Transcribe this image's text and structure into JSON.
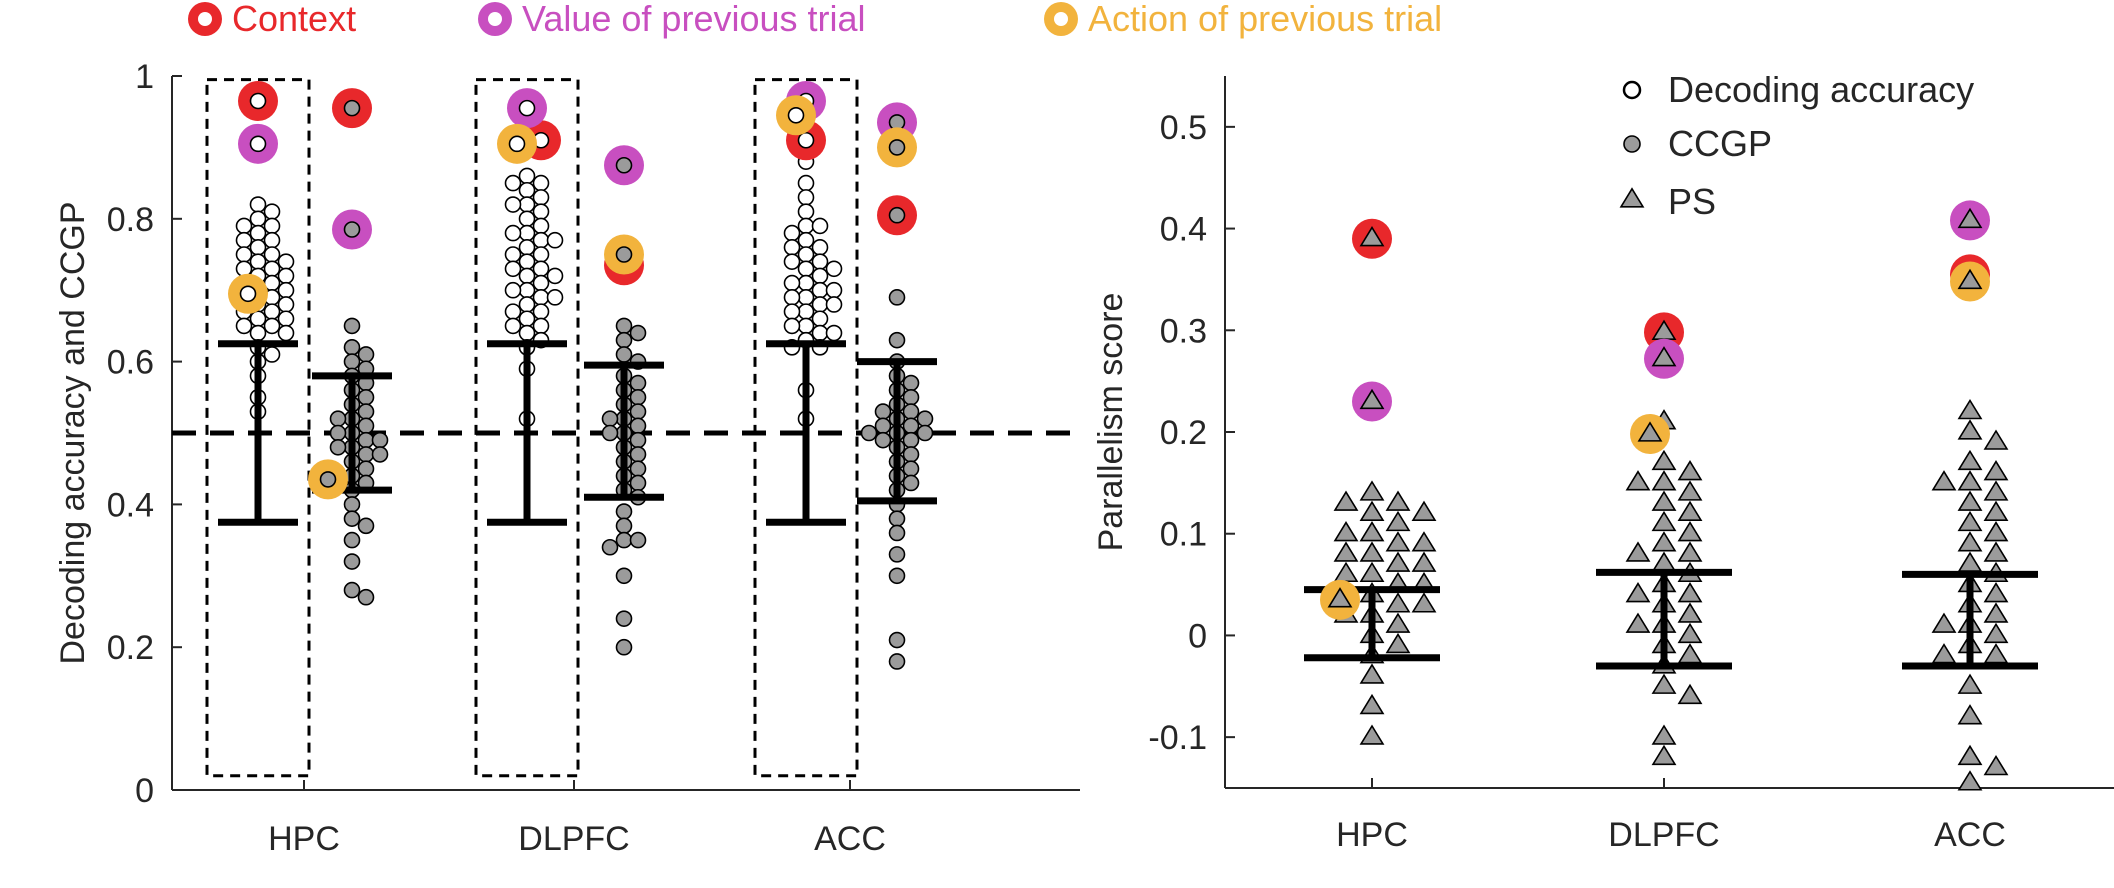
{
  "top_legend": [
    {
      "label": "Context",
      "color": "#e8282b"
    },
    {
      "label": "Value of previous trial",
      "color": "#c84fc0"
    },
    {
      "label": "Action of previous trial",
      "color": "#f2b33d"
    }
  ],
  "colors": {
    "context": "#e8282b",
    "value": "#c84fc0",
    "action": "#f2b33d",
    "ccgp_fill": "#9b9b9b",
    "ps_fill": "#9b9b9b",
    "axis": "#262626"
  },
  "chart_data": [
    {
      "type": "scatter",
      "ylabel": "Decoding accuracy and CCGP",
      "xlabel": "",
      "categories": [
        "HPC",
        "DLPFC",
        "ACC"
      ],
      "ylim": [
        0,
        1
      ],
      "yticks": [
        0,
        0.2,
        0.4,
        0.6,
        0.8,
        1
      ],
      "ytick_labels": [
        "0",
        "0.2",
        "0.4",
        "0.6",
        "0.8",
        "1"
      ],
      "chance_level": 0.5,
      "series": [
        {
          "name": "Decoding accuracy",
          "groups": [
            {
              "category": "HPC",
              "null_values": [
                0.82,
                0.81,
                0.8,
                0.79,
                0.79,
                0.78,
                0.77,
                0.77,
                0.76,
                0.75,
                0.75,
                0.74,
                0.74,
                0.73,
                0.73,
                0.72,
                0.72,
                0.71,
                0.71,
                0.7,
                0.7,
                0.69,
                0.69,
                0.68,
                0.68,
                0.67,
                0.67,
                0.66,
                0.66,
                0.65,
                0.65,
                0.64,
                0.64,
                0.62,
                0.61,
                0.6,
                0.58,
                0.55,
                0.53
              ],
              "null_errorbar": [
                0.375,
                0.625
              ],
              "context": 0.965,
              "value": 0.905,
              "action": 0.695
            },
            {
              "category": "DLPFC",
              "null_values": [
                0.86,
                0.85,
                0.85,
                0.84,
                0.83,
                0.82,
                0.82,
                0.81,
                0.8,
                0.79,
                0.78,
                0.78,
                0.77,
                0.77,
                0.76,
                0.75,
                0.75,
                0.74,
                0.73,
                0.73,
                0.72,
                0.72,
                0.71,
                0.7,
                0.7,
                0.69,
                0.69,
                0.68,
                0.67,
                0.67,
                0.66,
                0.65,
                0.65,
                0.64,
                0.63,
                0.62,
                0.59,
                0.52
              ],
              "null_errorbar": [
                0.375,
                0.625
              ],
              "context": 0.91,
              "value": 0.955,
              "action": 0.905
            },
            {
              "category": "ACC",
              "null_values": [
                0.88,
                0.85,
                0.83,
                0.81,
                0.79,
                0.79,
                0.78,
                0.77,
                0.76,
                0.76,
                0.75,
                0.74,
                0.74,
                0.73,
                0.73,
                0.72,
                0.71,
                0.71,
                0.7,
                0.7,
                0.69,
                0.69,
                0.68,
                0.68,
                0.67,
                0.67,
                0.66,
                0.65,
                0.65,
                0.64,
                0.64,
                0.63,
                0.62,
                0.62,
                0.56,
                0.52
              ],
              "null_errorbar": [
                0.375,
                0.625
              ],
              "context": 0.91,
              "value": 0.965,
              "action": 0.945
            }
          ]
        },
        {
          "name": "CCGP",
          "groups": [
            {
              "category": "HPC",
              "null_values": [
                0.65,
                0.62,
                0.61,
                0.6,
                0.59,
                0.58,
                0.57,
                0.56,
                0.55,
                0.54,
                0.53,
                0.52,
                0.52,
                0.51,
                0.5,
                0.5,
                0.49,
                0.49,
                0.48,
                0.48,
                0.47,
                0.47,
                0.46,
                0.45,
                0.44,
                0.43,
                0.42,
                0.4,
                0.38,
                0.37,
                0.35,
                0.32,
                0.28,
                0.27
              ],
              "null_errorbar": [
                0.42,
                0.58
              ],
              "context": 0.955,
              "value": 0.785,
              "action": 0.435
            },
            {
              "category": "DLPFC",
              "null_values": [
                0.65,
                0.64,
                0.63,
                0.61,
                0.6,
                0.58,
                0.57,
                0.56,
                0.55,
                0.54,
                0.53,
                0.52,
                0.52,
                0.51,
                0.5,
                0.5,
                0.49,
                0.48,
                0.47,
                0.46,
                0.45,
                0.44,
                0.43,
                0.42,
                0.41,
                0.39,
                0.37,
                0.35,
                0.35,
                0.34,
                0.3,
                0.24,
                0.2
              ],
              "null_errorbar": [
                0.41,
                0.595
              ],
              "context": 0.735,
              "value": 0.875,
              "action": 0.75
            },
            {
              "category": "ACC",
              "null_values": [
                0.69,
                0.63,
                0.6,
                0.58,
                0.57,
                0.56,
                0.55,
                0.54,
                0.53,
                0.53,
                0.52,
                0.52,
                0.51,
                0.51,
                0.5,
                0.5,
                0.5,
                0.49,
                0.49,
                0.48,
                0.47,
                0.46,
                0.45,
                0.44,
                0.43,
                0.42,
                0.4,
                0.38,
                0.36,
                0.33,
                0.3,
                0.21,
                0.18
              ],
              "null_errorbar": [
                0.405,
                0.6
              ],
              "context": 0.805,
              "value": 0.935,
              "action": 0.9
            }
          ]
        }
      ]
    },
    {
      "type": "scatter",
      "ylabel": "Parallelism score",
      "xlabel": "",
      "categories": [
        "HPC",
        "DLPFC",
        "ACC"
      ],
      "ylim": [
        -0.15,
        0.55
      ],
      "yticks": [
        -0.1,
        0,
        0.1,
        0.2,
        0.3,
        0.4,
        0.5
      ],
      "ytick_labels": [
        "-0.1",
        "0",
        "0.1",
        "0.2",
        "0.3",
        "0.4",
        "0.5"
      ],
      "legend": [
        {
          "label": "Decoding accuracy",
          "marker": "open-circle"
        },
        {
          "label": "CCGP",
          "marker": "gray-circle"
        },
        {
          "label": "PS",
          "marker": "gray-triangle"
        }
      ],
      "legend_position": "top-right",
      "series": [
        {
          "name": "PS",
          "groups": [
            {
              "category": "HPC",
              "null_values": [
                0.14,
                0.13,
                0.13,
                0.12,
                0.12,
                0.11,
                0.1,
                0.1,
                0.09,
                0.09,
                0.08,
                0.08,
                0.07,
                0.07,
                0.06,
                0.06,
                0.05,
                0.05,
                0.04,
                0.04,
                0.03,
                0.03,
                0.02,
                0.02,
                0.01,
                0.0,
                -0.01,
                -0.02,
                -0.04,
                -0.07,
                -0.1
              ],
              "null_errorbar": [
                -0.022,
                0.045
              ],
              "context": 0.39,
              "value": 0.23,
              "action": 0.035
            },
            {
              "category": "DLPFC",
              "null_values": [
                0.21,
                0.17,
                0.16,
                0.15,
                0.15,
                0.14,
                0.13,
                0.12,
                0.11,
                0.1,
                0.09,
                0.08,
                0.08,
                0.07,
                0.06,
                0.05,
                0.04,
                0.04,
                0.03,
                0.02,
                0.01,
                0.01,
                0.0,
                -0.01,
                -0.02,
                -0.03,
                -0.05,
                -0.06,
                -0.1,
                -0.12
              ],
              "null_errorbar": [
                -0.03,
                0.062
              ],
              "context": 0.298,
              "value": 0.272,
              "action": 0.198
            },
            {
              "category": "ACC",
              "null_values": [
                0.22,
                0.2,
                0.19,
                0.17,
                0.16,
                0.15,
                0.15,
                0.14,
                0.13,
                0.12,
                0.11,
                0.1,
                0.09,
                0.08,
                0.07,
                0.06,
                0.05,
                0.04,
                0.03,
                0.02,
                0.01,
                0.01,
                0.0,
                -0.01,
                -0.02,
                -0.02,
                -0.05,
                -0.08,
                -0.12,
                -0.13,
                -0.145
              ],
              "null_errorbar": [
                -0.03,
                0.06
              ],
              "context": 0.355,
              "value": 0.408,
              "action": 0.348
            }
          ]
        }
      ]
    }
  ]
}
